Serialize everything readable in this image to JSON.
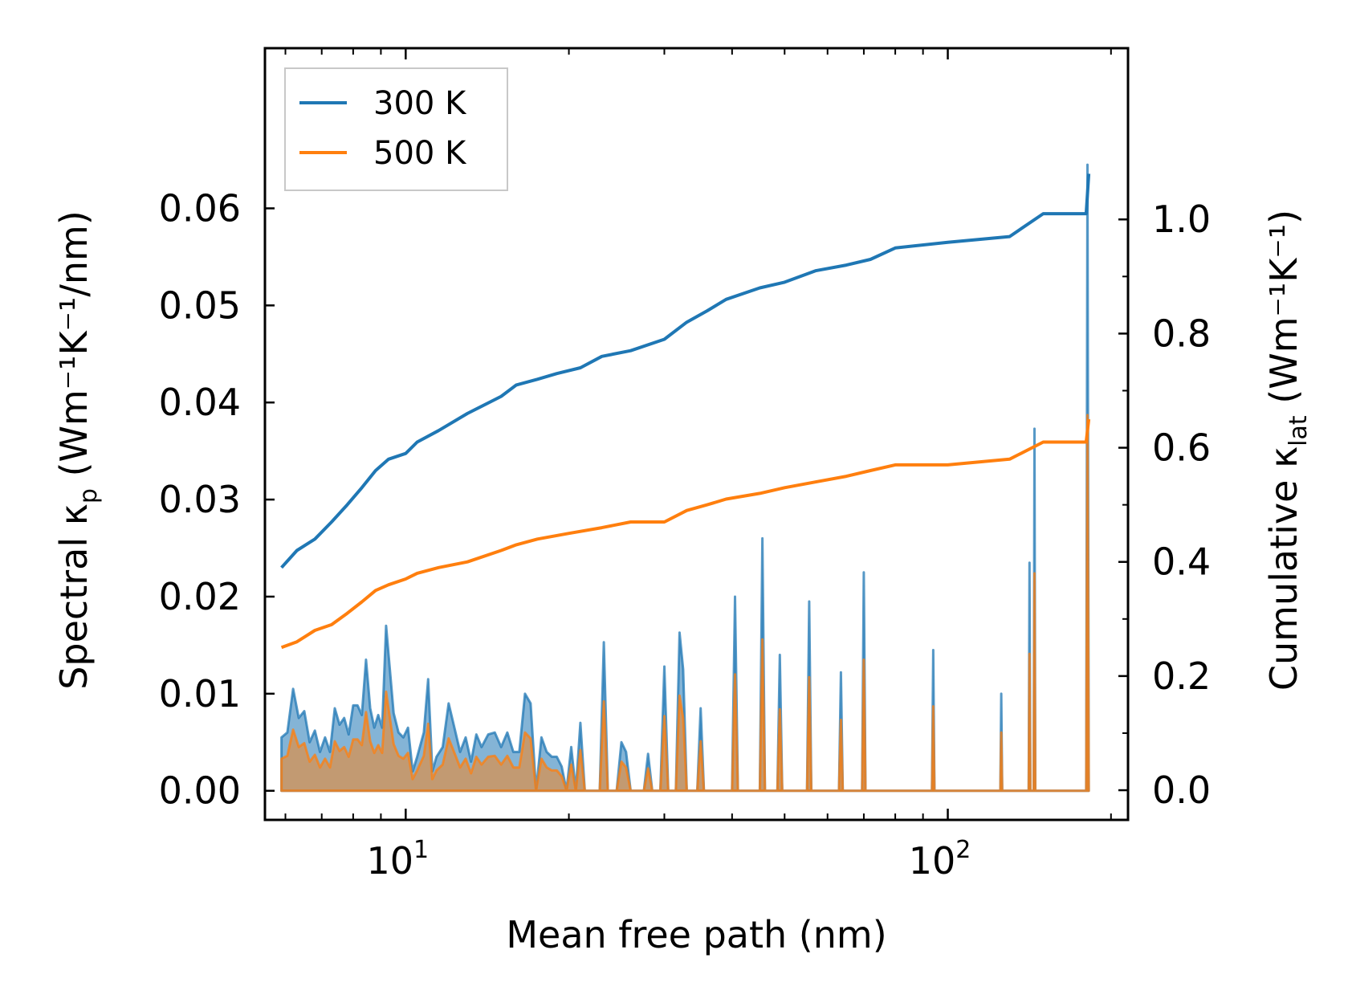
{
  "chart_data": {
    "type": "line",
    "title": "",
    "xlabel": "Mean free path (nm)",
    "xscale": "log",
    "xlim": [
      5.5,
      215
    ],
    "x_ticks": [
      {
        "value": 10,
        "base": "10",
        "exp": "1"
      },
      {
        "value": 100,
        "base": "10",
        "exp": "2"
      }
    ],
    "y_left": {
      "label_prefix": "Spectral κ",
      "label_sub": "p",
      "label_suffix": " (Wm⁻¹K⁻¹/nm)",
      "ylim": [
        -0.003,
        0.0765
      ],
      "ticks": [
        "0.00",
        "0.01",
        "0.02",
        "0.03",
        "0.04",
        "0.05",
        "0.06"
      ],
      "tick_values": [
        0,
        0.01,
        0.02,
        0.03,
        0.04,
        0.05,
        0.06
      ]
    },
    "y_right": {
      "label_prefix": "Cumulative κ",
      "label_sub": "lat",
      "label_suffix": " (Wm⁻¹K⁻¹)",
      "ylim": [
        -0.052,
        1.3
      ],
      "ticks": [
        "0.0",
        "0.2",
        "0.4",
        "0.6",
        "0.8",
        "1.0"
      ],
      "tick_values": [
        0,
        0.2,
        0.4,
        0.6,
        0.8,
        1.0
      ]
    },
    "legend": {
      "position": "top-left",
      "entries": [
        "300 K",
        "500 K"
      ]
    },
    "colors": {
      "s300": "#1f77b4",
      "s500": "#ff7f0e"
    },
    "cumulative": [
      {
        "name": "300 K",
        "axis": "right",
        "points": [
          [
            5.9,
            0.39
          ],
          [
            6.3,
            0.42
          ],
          [
            6.8,
            0.44
          ],
          [
            7.3,
            0.47
          ],
          [
            7.8,
            0.5
          ],
          [
            8.3,
            0.53
          ],
          [
            8.8,
            0.56
          ],
          [
            9.3,
            0.58
          ],
          [
            10.0,
            0.59
          ],
          [
            10.5,
            0.61
          ],
          [
            11.5,
            0.63
          ],
          [
            13.0,
            0.66
          ],
          [
            15.0,
            0.69
          ],
          [
            16.0,
            0.71
          ],
          [
            17.5,
            0.72
          ],
          [
            19.0,
            0.73
          ],
          [
            21.0,
            0.74
          ],
          [
            23.0,
            0.76
          ],
          [
            26.0,
            0.77
          ],
          [
            30.0,
            0.79
          ],
          [
            33.0,
            0.82
          ],
          [
            36.0,
            0.84
          ],
          [
            39.0,
            0.86
          ],
          [
            45.0,
            0.88
          ],
          [
            50.0,
            0.89
          ],
          [
            57.0,
            0.91
          ],
          [
            65.0,
            0.92
          ],
          [
            72.0,
            0.93
          ],
          [
            80.0,
            0.95
          ],
          [
            100.0,
            0.96
          ],
          [
            130.0,
            0.97
          ],
          [
            150.0,
            1.01
          ],
          [
            180.0,
            1.01
          ],
          [
            182.0,
            1.08
          ]
        ]
      },
      {
        "name": "500 K",
        "axis": "right",
        "points": [
          [
            5.9,
            0.25
          ],
          [
            6.3,
            0.26
          ],
          [
            6.8,
            0.28
          ],
          [
            7.3,
            0.29
          ],
          [
            7.8,
            0.31
          ],
          [
            8.3,
            0.33
          ],
          [
            8.8,
            0.35
          ],
          [
            9.3,
            0.36
          ],
          [
            10.0,
            0.37
          ],
          [
            10.5,
            0.38
          ],
          [
            11.5,
            0.39
          ],
          [
            13.0,
            0.4
          ],
          [
            15.0,
            0.42
          ],
          [
            16.0,
            0.43
          ],
          [
            17.5,
            0.44
          ],
          [
            20.0,
            0.45
          ],
          [
            23.0,
            0.46
          ],
          [
            26.0,
            0.47
          ],
          [
            30.0,
            0.47
          ],
          [
            33.0,
            0.49
          ],
          [
            36.0,
            0.5
          ],
          [
            39.0,
            0.51
          ],
          [
            45.0,
            0.52
          ],
          [
            50.0,
            0.53
          ],
          [
            57.0,
            0.54
          ],
          [
            65.0,
            0.55
          ],
          [
            72.0,
            0.56
          ],
          [
            80.0,
            0.57
          ],
          [
            100.0,
            0.57
          ],
          [
            130.0,
            0.58
          ],
          [
            150.0,
            0.61
          ],
          [
            180.0,
            0.61
          ],
          [
            182.0,
            0.65
          ]
        ]
      }
    ],
    "spectral": [
      {
        "name": "300 K",
        "axis": "left",
        "points": [
          [
            5.9,
            0.0055
          ],
          [
            6.05,
            0.006
          ],
          [
            6.2,
            0.0105
          ],
          [
            6.35,
            0.0075
          ],
          [
            6.5,
            0.0082
          ],
          [
            6.65,
            0.005
          ],
          [
            6.8,
            0.0062
          ],
          [
            6.95,
            0.004
          ],
          [
            7.1,
            0.0055
          ],
          [
            7.25,
            0.004
          ],
          [
            7.4,
            0.0085
          ],
          [
            7.55,
            0.0068
          ],
          [
            7.7,
            0.0075
          ],
          [
            7.85,
            0.0058
          ],
          [
            8.0,
            0.0088
          ],
          [
            8.15,
            0.0088
          ],
          [
            8.3,
            0.0078
          ],
          [
            8.45,
            0.0135
          ],
          [
            8.6,
            0.0085
          ],
          [
            8.75,
            0.0065
          ],
          [
            8.9,
            0.0078
          ],
          [
            9.05,
            0.0065
          ],
          [
            9.2,
            0.017
          ],
          [
            9.35,
            0.0125
          ],
          [
            9.5,
            0.008
          ],
          [
            9.7,
            0.006
          ],
          [
            9.9,
            0.0055
          ],
          [
            10.1,
            0.0065
          ],
          [
            10.3,
            0.002
          ],
          [
            10.5,
            0.0035
          ],
          [
            10.8,
            0.006
          ],
          [
            11.0,
            0.0115
          ],
          [
            11.2,
            0.002
          ],
          [
            11.4,
            0.0035
          ],
          [
            11.7,
            0.0045
          ],
          [
            12.0,
            0.009
          ],
          [
            12.3,
            0.0065
          ],
          [
            12.6,
            0.004
          ],
          [
            12.9,
            0.0055
          ],
          [
            13.2,
            0.003
          ],
          [
            13.5,
            0.0058
          ],
          [
            13.8,
            0.0045
          ],
          [
            14.2,
            0.0058
          ],
          [
            14.6,
            0.006
          ],
          [
            15.0,
            0.0045
          ],
          [
            15.4,
            0.006
          ],
          [
            15.8,
            0.004
          ],
          [
            16.2,
            0.004
          ],
          [
            16.6,
            0.01
          ],
          [
            17.0,
            0.009
          ],
          [
            17.4,
            0.0
          ],
          [
            17.8,
            0.0055
          ],
          [
            18.2,
            0.004
          ],
          [
            18.6,
            0.0035
          ],
          [
            19.0,
            0.0035
          ],
          [
            19.4,
            0.0025
          ],
          [
            19.8,
            0.0
          ],
          [
            20.2,
            0.0045
          ],
          [
            20.6,
            0.0
          ],
          [
            21.0,
            0.007
          ],
          [
            21.4,
            0.0
          ],
          [
            22.0,
            0.0
          ],
          [
            22.8,
            0.0
          ],
          [
            23.2,
            0.0153
          ],
          [
            23.6,
            0.0
          ],
          [
            24.5,
            0.0
          ],
          [
            25.0,
            0.005
          ],
          [
            25.5,
            0.004
          ],
          [
            26.0,
            0.0
          ],
          [
            27.5,
            0.0
          ],
          [
            28.0,
            0.0038
          ],
          [
            28.5,
            0.0
          ],
          [
            29.5,
            0.0
          ],
          [
            30.0,
            0.0128
          ],
          [
            30.5,
            0.0
          ],
          [
            31.5,
            0.0
          ],
          [
            32.0,
            0.0163
          ],
          [
            32.5,
            0.0125
          ],
          [
            33.0,
            0.0
          ],
          [
            34.5,
            0.0
          ],
          [
            35.0,
            0.0085
          ],
          [
            35.5,
            0.0
          ],
          [
            40.0,
            0.0
          ],
          [
            40.5,
            0.02
          ],
          [
            41.0,
            0.0
          ],
          [
            45.0,
            0.0
          ],
          [
            45.5,
            0.026
          ],
          [
            46.0,
            0.0
          ],
          [
            48.5,
            0.0
          ],
          [
            49.0,
            0.014
          ],
          [
            49.5,
            0.0
          ],
          [
            55.0,
            0.0
          ],
          [
            55.5,
            0.0195
          ],
          [
            56.0,
            0.0
          ],
          [
            63.0,
            0.0
          ],
          [
            63.5,
            0.0122
          ],
          [
            64.0,
            0.0
          ],
          [
            69.5,
            0.0
          ],
          [
            70.0,
            0.0225
          ],
          [
            70.5,
            0.0
          ],
          [
            93.5,
            0.0
          ],
          [
            94.0,
            0.0145
          ],
          [
            94.5,
            0.0
          ],
          [
            125.0,
            0.0
          ],
          [
            125.5,
            0.01
          ],
          [
            126.0,
            0.0
          ],
          [
            141.0,
            0.0
          ],
          [
            141.5,
            0.0235
          ],
          [
            142.0,
            0.0
          ],
          [
            144.0,
            0.0
          ],
          [
            144.5,
            0.0373
          ],
          [
            145.0,
            0.0
          ],
          [
            180.0,
            0.0
          ],
          [
            181.0,
            0.0645
          ],
          [
            182.0,
            0.0
          ]
        ]
      },
      {
        "name": "500 K",
        "axis": "left",
        "points": [
          [
            5.9,
            0.0033
          ],
          [
            6.05,
            0.0036
          ],
          [
            6.2,
            0.0063
          ],
          [
            6.35,
            0.0045
          ],
          [
            6.5,
            0.0049
          ],
          [
            6.65,
            0.003
          ],
          [
            6.8,
            0.0037
          ],
          [
            6.95,
            0.0024
          ],
          [
            7.1,
            0.0033
          ],
          [
            7.25,
            0.0024
          ],
          [
            7.4,
            0.0051
          ],
          [
            7.55,
            0.0041
          ],
          [
            7.7,
            0.0045
          ],
          [
            7.85,
            0.0035
          ],
          [
            8.0,
            0.0053
          ],
          [
            8.15,
            0.0053
          ],
          [
            8.3,
            0.0047
          ],
          [
            8.45,
            0.0081
          ],
          [
            8.6,
            0.0051
          ],
          [
            8.75,
            0.0039
          ],
          [
            8.9,
            0.0047
          ],
          [
            9.05,
            0.0039
          ],
          [
            9.2,
            0.0102
          ],
          [
            9.35,
            0.0075
          ],
          [
            9.5,
            0.0048
          ],
          [
            9.7,
            0.0036
          ],
          [
            9.9,
            0.0033
          ],
          [
            10.1,
            0.0039
          ],
          [
            10.3,
            0.0012
          ],
          [
            10.5,
            0.0021
          ],
          [
            10.8,
            0.0036
          ],
          [
            11.0,
            0.0069
          ],
          [
            11.2,
            0.0012
          ],
          [
            11.4,
            0.0021
          ],
          [
            11.7,
            0.0027
          ],
          [
            12.0,
            0.0054
          ],
          [
            12.3,
            0.0039
          ],
          [
            12.6,
            0.0024
          ],
          [
            12.9,
            0.0033
          ],
          [
            13.2,
            0.0018
          ],
          [
            13.5,
            0.0035
          ],
          [
            13.8,
            0.0027
          ],
          [
            14.2,
            0.0035
          ],
          [
            14.6,
            0.0036
          ],
          [
            15.0,
            0.0027
          ],
          [
            15.4,
            0.0036
          ],
          [
            15.8,
            0.0024
          ],
          [
            16.2,
            0.0024
          ],
          [
            16.6,
            0.006
          ],
          [
            17.0,
            0.0054
          ],
          [
            17.4,
            0.0
          ],
          [
            17.8,
            0.0033
          ],
          [
            18.2,
            0.0024
          ],
          [
            18.6,
            0.0021
          ],
          [
            19.0,
            0.0021
          ],
          [
            19.4,
            0.0015
          ],
          [
            19.8,
            0.0
          ],
          [
            20.2,
            0.0027
          ],
          [
            20.6,
            0.0
          ],
          [
            21.0,
            0.0042
          ],
          [
            21.4,
            0.0
          ],
          [
            22.0,
            0.0
          ],
          [
            22.8,
            0.0
          ],
          [
            23.2,
            0.0092
          ],
          [
            23.6,
            0.0
          ],
          [
            24.5,
            0.0
          ],
          [
            25.0,
            0.003
          ],
          [
            25.5,
            0.0024
          ],
          [
            26.0,
            0.0
          ],
          [
            27.5,
            0.0
          ],
          [
            28.0,
            0.0023
          ],
          [
            28.5,
            0.0
          ],
          [
            29.5,
            0.0
          ],
          [
            30.0,
            0.0077
          ],
          [
            30.5,
            0.0
          ],
          [
            31.5,
            0.0
          ],
          [
            32.0,
            0.0098
          ],
          [
            32.5,
            0.0075
          ],
          [
            33.0,
            0.0
          ],
          [
            34.5,
            0.0
          ],
          [
            35.0,
            0.0051
          ],
          [
            35.5,
            0.0
          ],
          [
            40.0,
            0.0
          ],
          [
            40.5,
            0.012
          ],
          [
            41.0,
            0.0
          ],
          [
            45.0,
            0.0
          ],
          [
            45.5,
            0.0156
          ],
          [
            46.0,
            0.0
          ],
          [
            48.5,
            0.0
          ],
          [
            49.0,
            0.0084
          ],
          [
            49.5,
            0.0
          ],
          [
            55.0,
            0.0
          ],
          [
            55.5,
            0.0117
          ],
          [
            56.0,
            0.0
          ],
          [
            63.0,
            0.0
          ],
          [
            63.5,
            0.0073
          ],
          [
            64.0,
            0.0
          ],
          [
            69.5,
            0.0
          ],
          [
            70.0,
            0.0135
          ],
          [
            70.5,
            0.0
          ],
          [
            93.5,
            0.0
          ],
          [
            94.0,
            0.0087
          ],
          [
            94.5,
            0.0
          ],
          [
            125.0,
            0.0
          ],
          [
            125.5,
            0.006
          ],
          [
            126.0,
            0.0
          ],
          [
            141.0,
            0.0
          ],
          [
            141.5,
            0.0141
          ],
          [
            142.0,
            0.0
          ],
          [
            144.0,
            0.0
          ],
          [
            144.5,
            0.0224
          ],
          [
            145.0,
            0.0
          ],
          [
            180.0,
            0.0
          ],
          [
            181.0,
            0.0387
          ],
          [
            182.0,
            0.0
          ]
        ]
      }
    ]
  }
}
